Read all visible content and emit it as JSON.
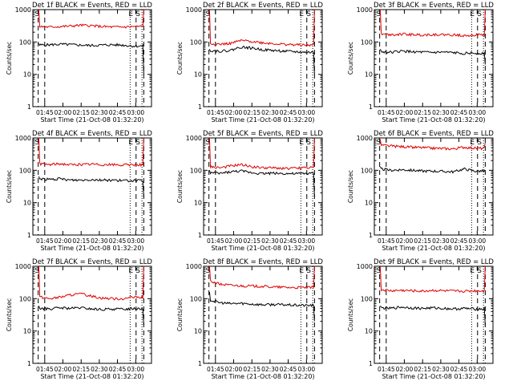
{
  "figure": {
    "colors": {
      "events": "#000000",
      "lld": "#e00000",
      "axis": "#000000"
    }
  },
  "chart_data": [
    {
      "type": "line",
      "title": "Det 1f BLACK = Events, RED = LLD",
      "xlabel": "Start Time (21-Oct-08 01:32:20)",
      "ylabel": "Counts/sec",
      "yscale": "log",
      "ylim": [
        1,
        1000
      ],
      "x_ticks": [
        "01:45",
        "02:00",
        "02:15",
        "02:30",
        "02:45",
        "03:00"
      ],
      "y_ticks": [
        "1",
        "10",
        "100",
        "1000"
      ],
      "markers": [
        "S",
        "E",
        "S"
      ],
      "series": [
        {
          "name": "BLACK = Events",
          "color": "#000000",
          "levels": [
            90,
            80,
            82,
            85,
            83,
            80,
            78,
            80,
            82,
            80,
            75,
            10
          ]
        },
        {
          "name": "RED = LLD",
          "color": "#e00000",
          "levels": [
            1000,
            300,
            290,
            300,
            310,
            330,
            320,
            300,
            290,
            290,
            300,
            1000
          ]
        }
      ]
    },
    {
      "type": "line",
      "title": "Det 2f BLACK = Events, RED = LLD",
      "xlabel": "Start Time (21-Oct-08 01:32:20)",
      "ylabel": "Counts/sec",
      "yscale": "log",
      "ylim": [
        1,
        1000
      ],
      "x_ticks": [
        "01:45",
        "02:00",
        "02:15",
        "02:30",
        "02:45",
        "03:00"
      ],
      "y_ticks": [
        "1",
        "10",
        "100",
        "1000"
      ],
      "markers": [
        "S",
        "E",
        "S"
      ],
      "series": [
        {
          "name": "BLACK = Events",
          "color": "#000000",
          "levels": [
            60,
            55,
            52,
            55,
            70,
            65,
            58,
            55,
            52,
            50,
            48,
            10
          ]
        },
        {
          "name": "RED = LLD",
          "color": "#e00000",
          "levels": [
            1000,
            90,
            85,
            90,
            110,
            105,
            95,
            90,
            85,
            82,
            80,
            1000
          ]
        }
      ]
    },
    {
      "type": "line",
      "title": "Det 3f BLACK = Events, RED = LLD",
      "xlabel": "Start Time (21-Oct-08 01:32:20)",
      "ylabel": "Counts/sec",
      "yscale": "log",
      "ylim": [
        1,
        1000
      ],
      "x_ticks": [
        "01:45",
        "02:00",
        "02:15",
        "02:30",
        "02:45",
        "03:00"
      ],
      "y_ticks": [
        "1",
        "10",
        "100",
        "1000"
      ],
      "markers": [
        "S",
        "E",
        "S"
      ],
      "series": [
        {
          "name": "BLACK = Events",
          "color": "#000000",
          "levels": [
            60,
            50,
            48,
            52,
            50,
            48,
            47,
            48,
            46,
            45,
            45,
            20
          ]
        },
        {
          "name": "RED = LLD",
          "color": "#e00000",
          "levels": [
            1000,
            180,
            170,
            175,
            170,
            165,
            170,
            168,
            165,
            160,
            165,
            1000
          ]
        }
      ]
    },
    {
      "type": "line",
      "title": "Det 4f BLACK = Events, RED = LLD",
      "xlabel": "Start Time (21-Oct-08 01:32:20)",
      "ylabel": "Counts/sec",
      "yscale": "log",
      "ylim": [
        1,
        1000
      ],
      "x_ticks": [
        "01:45",
        "02:00",
        "02:15",
        "02:30",
        "02:45",
        "03:00"
      ],
      "y_ticks": [
        "1",
        "10",
        "100",
        "1000"
      ],
      "markers": [
        "S",
        "E",
        "S"
      ],
      "series": [
        {
          "name": "BLACK = Events",
          "color": "#000000",
          "levels": [
            65,
            55,
            52,
            54,
            50,
            50,
            52,
            50,
            50,
            48,
            48,
            15
          ]
        },
        {
          "name": "RED = LLD",
          "color": "#e00000",
          "levels": [
            1000,
            160,
            150,
            160,
            150,
            150,
            155,
            150,
            150,
            145,
            150,
            1000
          ]
        }
      ]
    },
    {
      "type": "line",
      "title": "Det 5f BLACK = Events, RED = LLD",
      "xlabel": "Start Time (21-Oct-08 01:32:20)",
      "ylabel": "Counts/sec",
      "yscale": "log",
      "ylim": [
        1,
        1000
      ],
      "x_ticks": [
        "01:45",
        "02:00",
        "02:15",
        "02:30",
        "02:45",
        "03:00"
      ],
      "y_ticks": [
        "1",
        "10",
        "100",
        "1000"
      ],
      "markers": [
        "S",
        "E",
        "S"
      ],
      "series": [
        {
          "name": "BLACK = Events",
          "color": "#000000",
          "levels": [
            100,
            85,
            80,
            90,
            95,
            85,
            80,
            82,
            80,
            78,
            80,
            15
          ]
        },
        {
          "name": "RED = LLD",
          "color": "#e00000",
          "levels": [
            1000,
            130,
            120,
            135,
            150,
            130,
            120,
            118,
            115,
            115,
            120,
            1000
          ]
        }
      ]
    },
    {
      "type": "line",
      "title": "Det 6f BLACK = Events, RED = LLD",
      "xlabel": "Start Time (21-Oct-08 01:32:20)",
      "ylabel": "Counts/sec",
      "yscale": "log",
      "ylim": [
        1,
        1000
      ],
      "x_ticks": [
        "01:45",
        "02:00",
        "02:15",
        "02:30",
        "02:45",
        "03:00"
      ],
      "y_ticks": [
        "1",
        "10",
        "100",
        "1000"
      ],
      "markers": [
        "S",
        "E",
        "S"
      ],
      "series": [
        {
          "name": "BLACK = Events",
          "color": "#000000",
          "levels": [
            130,
            110,
            100,
            105,
            100,
            95,
            95,
            92,
            90,
            110,
            95,
            90
          ]
        },
        {
          "name": "RED = LLD",
          "color": "#e00000",
          "levels": [
            900,
            600,
            560,
            540,
            520,
            500,
            480,
            470,
            460,
            520,
            480,
            700
          ]
        }
      ]
    },
    {
      "type": "line",
      "title": "Det 7f BLACK = Events, RED = LLD",
      "xlabel": "Start Time (21-Oct-08 01:32:20)",
      "ylabel": "Counts/sec",
      "yscale": "log",
      "ylim": [
        1,
        1000
      ],
      "x_ticks": [
        "01:45",
        "02:00",
        "02:15",
        "02:30",
        "02:45",
        "03:00"
      ],
      "y_ticks": [
        "1",
        "10",
        "100",
        "1000"
      ],
      "markers": [
        "S",
        "E",
        "S"
      ],
      "series": [
        {
          "name": "BLACK = Events",
          "color": "#000000",
          "levels": [
            60,
            50,
            48,
            52,
            50,
            52,
            48,
            46,
            48,
            47,
            50,
            15
          ]
        },
        {
          "name": "RED = LLD",
          "color": "#e00000",
          "levels": [
            1000,
            115,
            100,
            110,
            130,
            140,
            120,
            105,
            100,
            100,
            110,
            1000
          ]
        }
      ]
    },
    {
      "type": "line",
      "title": "Det 8f BLACK = Events, RED = LLD",
      "xlabel": "Start Time (21-Oct-08 01:32:20)",
      "ylabel": "Counts/sec",
      "yscale": "log",
      "ylim": [
        1,
        1000
      ],
      "x_ticks": [
        "01:45",
        "02:00",
        "02:15",
        "02:30",
        "02:45",
        "03:00"
      ],
      "y_ticks": [
        "1",
        "10",
        "100",
        "1000"
      ],
      "markers": [
        "S",
        "E",
        "S"
      ],
      "series": [
        {
          "name": "BLACK = Events",
          "color": "#000000",
          "levels": [
            160,
            90,
            75,
            70,
            72,
            68,
            65,
            66,
            65,
            63,
            62,
            20
          ]
        },
        {
          "name": "RED = LLD",
          "color": "#e00000",
          "levels": [
            1000,
            350,
            280,
            260,
            250,
            245,
            240,
            230,
            225,
            220,
            220,
            1000
          ]
        }
      ]
    },
    {
      "type": "line",
      "title": "Det 9f BLACK = Events, RED = LLD",
      "xlabel": "Start Time (21-Oct-08 01:32:20)",
      "ylabel": "Counts/sec",
      "yscale": "log",
      "ylim": [
        1,
        1000
      ],
      "x_ticks": [
        "01:45",
        "02:00",
        "02:15",
        "02:30",
        "02:45",
        "03:00"
      ],
      "y_ticks": [
        "1",
        "10",
        "100",
        "1000"
      ],
      "markers": [
        "S",
        "E",
        "S"
      ],
      "series": [
        {
          "name": "BLACK = Events",
          "color": "#000000",
          "levels": [
            60,
            52,
            50,
            55,
            52,
            50,
            52,
            50,
            48,
            50,
            48,
            15
          ]
        },
        {
          "name": "RED = LLD",
          "color": "#e00000",
          "levels": [
            1000,
            190,
            175,
            180,
            175,
            170,
            180,
            175,
            170,
            170,
            175,
            1000
          ]
        }
      ]
    }
  ]
}
